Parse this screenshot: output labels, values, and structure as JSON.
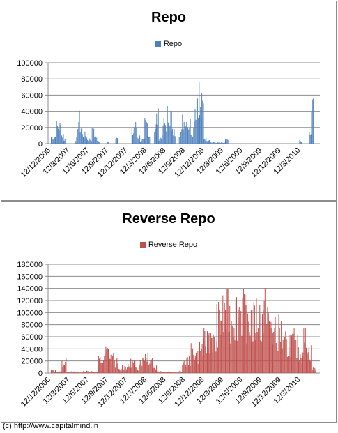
{
  "footer": "(c) http://www.capitalmind.in",
  "chart_data": [
    {
      "type": "bar",
      "title": "Repo",
      "legend": "Repo",
      "color": "#4f81bd",
      "ylim": [
        0,
        100000
      ],
      "yticks": [
        0,
        20000,
        40000,
        60000,
        80000,
        100000
      ],
      "xticks": [
        "12/12/2006",
        "12/3/2007",
        "12/6/2007",
        "12/9/2007",
        "12/12/2007",
        "12/3/2008",
        "12/6/2008",
        "12/9/2008",
        "12/12/2008",
        "12/3/2009",
        "12/6/2009",
        "12/9/2009",
        "12/12/2009",
        "12/3/2010"
      ],
      "xlabel": "",
      "ylabel": "",
      "grid": true,
      "legend_position": "top",
      "series_profile": [
        [
          0.0,
          0.05,
          12000
        ],
        [
          0.05,
          0.09,
          30000
        ],
        [
          0.09,
          0.12,
          15000
        ],
        [
          0.12,
          0.14,
          8000
        ],
        [
          0.22,
          0.24,
          8000
        ],
        [
          0.24,
          0.27,
          42000
        ],
        [
          0.27,
          0.29,
          30000
        ],
        [
          0.29,
          0.33,
          15000
        ],
        [
          0.33,
          0.38,
          8000
        ],
        [
          0.38,
          0.4,
          20000
        ],
        [
          0.4,
          0.43,
          12000
        ],
        [
          0.43,
          0.46,
          4000
        ],
        [
          0.46,
          0.52,
          0
        ],
        [
          0.52,
          0.54,
          5000
        ],
        [
          0.54,
          0.6,
          0
        ],
        [
          0.6,
          0.62,
          9000
        ],
        [
          0.62,
          0.75,
          0
        ],
        [
          0.75,
          0.77,
          20000
        ],
        [
          0.77,
          0.8,
          30000
        ],
        [
          0.8,
          0.83,
          12000
        ],
        [
          0.83,
          0.87,
          6000
        ],
        [
          0.87,
          0.9,
          35000
        ],
        [
          0.9,
          0.92,
          15000
        ],
        [
          0.92,
          0.96,
          0
        ],
        [
          0.96,
          0.98,
          30000
        ],
        [
          0.98,
          1.0,
          45000
        ],
        [
          1.0,
          1.04,
          10000
        ],
        [
          1.04,
          1.08,
          35000
        ],
        [
          1.08,
          1.12,
          50000
        ],
        [
          1.12,
          1.16,
          20000
        ],
        [
          1.16,
          1.19,
          0
        ],
        [
          1.19,
          1.22,
          20000
        ],
        [
          1.22,
          1.27,
          40000
        ],
        [
          1.27,
          1.3,
          35000
        ],
        [
          1.3,
          1.33,
          25000
        ],
        [
          1.33,
          1.36,
          70000
        ],
        [
          1.36,
          1.38,
          90000
        ],
        [
          1.38,
          1.4,
          55000
        ],
        [
          1.4,
          1.42,
          65000
        ],
        [
          1.42,
          1.44,
          10000
        ],
        [
          1.44,
          1.48,
          8000
        ],
        [
          1.48,
          1.55,
          2000
        ],
        [
          1.55,
          1.62,
          1500
        ],
        [
          1.62,
          1.65,
          6000
        ],
        [
          1.65,
          2.31,
          0
        ],
        [
          2.31,
          2.33,
          5000
        ],
        [
          2.33,
          2.4,
          0
        ],
        [
          2.4,
          2.42,
          15000
        ],
        [
          2.42,
          2.44,
          65000
        ]
      ]
    },
    {
      "type": "bar",
      "title": "Reverse Repo",
      "legend": "Reverse Repo",
      "color": "#c0504d",
      "ylim": [
        0,
        180000
      ],
      "yticks": [
        0,
        20000,
        40000,
        60000,
        80000,
        100000,
        120000,
        140000,
        160000,
        180000
      ],
      "xticks": [
        "12/12/2006",
        "12/3/2007",
        "12/6/2007",
        "12/9/2007",
        "12/12/2007",
        "12/3/2008",
        "12/6/2008",
        "12/9/2008",
        "12/12/2008",
        "12/3/2009",
        "12/6/2009",
        "12/9/2009",
        "12/12/2009",
        "12/3/2010"
      ],
      "xlabel": "",
      "ylabel": "",
      "grid": true,
      "legend_position": "top",
      "series_profile": [
        [
          0.0,
          0.04,
          6000
        ],
        [
          0.04,
          0.1,
          3000
        ],
        [
          0.1,
          0.14,
          25000
        ],
        [
          0.14,
          0.22,
          3000
        ],
        [
          0.22,
          0.3,
          2000
        ],
        [
          0.3,
          0.38,
          4000
        ],
        [
          0.38,
          0.44,
          3000
        ],
        [
          0.44,
          0.5,
          30000
        ],
        [
          0.5,
          0.54,
          50000
        ],
        [
          0.54,
          0.58,
          35000
        ],
        [
          0.58,
          0.62,
          25000
        ],
        [
          0.62,
          0.66,
          8000
        ],
        [
          0.66,
          0.74,
          15000
        ],
        [
          0.74,
          0.78,
          25000
        ],
        [
          0.78,
          0.82,
          10000
        ],
        [
          0.82,
          0.86,
          30000
        ],
        [
          0.86,
          0.9,
          45000
        ],
        [
          0.9,
          0.94,
          35000
        ],
        [
          0.94,
          0.98,
          15000
        ],
        [
          0.98,
          1.02,
          5000
        ],
        [
          1.02,
          1.1,
          3000
        ],
        [
          1.1,
          1.18,
          2000
        ],
        [
          1.18,
          1.22,
          4000
        ],
        [
          1.22,
          1.26,
          20000
        ],
        [
          1.26,
          1.3,
          30000
        ],
        [
          1.3,
          1.34,
          50000
        ],
        [
          1.34,
          1.38,
          40000
        ],
        [
          1.38,
          1.42,
          60000
        ],
        [
          1.42,
          1.46,
          75000
        ],
        [
          1.46,
          1.5,
          90000
        ],
        [
          1.5,
          1.54,
          70000
        ],
        [
          1.54,
          1.58,
          120000
        ],
        [
          1.58,
          1.62,
          135000
        ],
        [
          1.62,
          1.66,
          140000
        ],
        [
          1.66,
          1.7,
          130000
        ],
        [
          1.7,
          1.74,
          145000
        ],
        [
          1.74,
          1.78,
          150000
        ],
        [
          1.78,
          1.82,
          140000
        ],
        [
          1.82,
          1.86,
          130000
        ],
        [
          1.86,
          1.9,
          120000
        ],
        [
          1.9,
          1.94,
          135000
        ],
        [
          1.94,
          1.98,
          125000
        ],
        [
          1.98,
          2.02,
          145000
        ],
        [
          2.02,
          2.06,
          110000
        ],
        [
          2.06,
          2.1,
          95000
        ],
        [
          2.1,
          2.14,
          100000
        ],
        [
          2.14,
          2.18,
          70000
        ],
        [
          2.18,
          2.22,
          60000
        ],
        [
          2.22,
          2.26,
          75000
        ],
        [
          2.26,
          2.3,
          65000
        ],
        [
          2.3,
          2.34,
          45000
        ],
        [
          2.34,
          2.38,
          80000
        ],
        [
          2.38,
          2.42,
          50000
        ],
        [
          2.42,
          2.46,
          10000
        ]
      ]
    }
  ]
}
